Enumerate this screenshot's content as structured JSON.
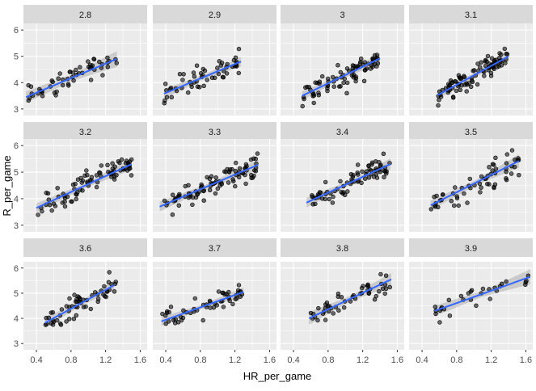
{
  "chart_data": {
    "type": "scatter",
    "subtype": "faceted scatter with linear fit and confidence band",
    "xlabel": "HR_per_game",
    "ylabel": "R_per_game",
    "x_ticks": [
      0.4,
      0.8,
      1.2,
      1.6
    ],
    "x_tick_labels": [
      "0.4",
      "0.8",
      "1.2",
      "1.6"
    ],
    "y_ticks": [
      3,
      4,
      5,
      6
    ],
    "y_tick_labels": [
      "3",
      "4",
      "5",
      "6"
    ],
    "xlim": [
      0.25,
      1.68
    ],
    "ylim": [
      2.75,
      6.25
    ],
    "colors": {
      "panel": "#EBEBEB",
      "strip": "#D9D9D9",
      "fit_line": "#3366FF",
      "band": "#999999",
      "points": "#000000"
    },
    "facets": [
      {
        "label": "2.8",
        "fit": {
          "x0": 0.28,
          "y0": 3.45,
          "x1": 1.33,
          "y1": 4.9,
          "se0": 0.22,
          "se1": 0.3
        },
        "n": 55,
        "xmin": 0.3,
        "xmax": 1.33
      },
      {
        "label": "2.9",
        "fit": {
          "x0": 0.38,
          "y0": 3.58,
          "x1": 1.27,
          "y1": 4.8,
          "se0": 0.18,
          "se1": 0.18
        },
        "n": 55,
        "xmin": 0.38,
        "xmax": 1.27
      },
      {
        "label": "3",
        "fit": {
          "x0": 0.5,
          "y0": 3.5,
          "x1": 1.4,
          "y1": 4.92,
          "se0": 0.17,
          "se1": 0.2
        },
        "n": 80,
        "xmin": 0.5,
        "xmax": 1.4
      },
      {
        "label": "3.1",
        "fit": {
          "x0": 0.58,
          "y0": 3.52,
          "x1": 1.4,
          "y1": 5.0,
          "se0": 0.16,
          "se1": 0.2
        },
        "n": 95,
        "xmin": 0.58,
        "xmax": 1.4
      },
      {
        "label": "3.2",
        "fit": {
          "x0": 0.4,
          "y0": 3.65,
          "x1": 1.5,
          "y1": 5.3,
          "se0": 0.17,
          "se1": 0.22
        },
        "n": 85,
        "xmin": 0.4,
        "xmax": 1.5
      },
      {
        "label": "3.3",
        "fit": {
          "x0": 0.33,
          "y0": 3.7,
          "x1": 1.47,
          "y1": 5.28,
          "se0": 0.18,
          "se1": 0.2
        },
        "n": 90,
        "xmin": 0.33,
        "xmax": 1.47
      },
      {
        "label": "3.4",
        "fit": {
          "x0": 0.55,
          "y0": 3.85,
          "x1": 1.52,
          "y1": 5.3,
          "se0": 0.18,
          "se1": 0.22
        },
        "n": 75,
        "xmin": 0.55,
        "xmax": 1.52
      },
      {
        "label": "3.5",
        "fit": {
          "x0": 0.5,
          "y0": 3.75,
          "x1": 1.52,
          "y1": 5.42,
          "se0": 0.18,
          "se1": 0.25
        },
        "n": 60,
        "xmin": 0.5,
        "xmax": 1.52
      },
      {
        "label": "3.6",
        "fit": {
          "x0": 0.5,
          "y0": 3.82,
          "x1": 1.3,
          "y1": 5.32,
          "se0": 0.2,
          "se1": 0.2
        },
        "n": 60,
        "xmin": 0.5,
        "xmax": 1.32
      },
      {
        "label": "3.7",
        "fit": {
          "x0": 0.35,
          "y0": 3.88,
          "x1": 1.3,
          "y1": 5.05,
          "se0": 0.18,
          "se1": 0.18
        },
        "n": 55,
        "xmin": 0.35,
        "xmax": 1.3
      },
      {
        "label": "3.8",
        "fit": {
          "x0": 0.58,
          "y0": 4.0,
          "x1": 1.53,
          "y1": 5.55,
          "se0": 0.25,
          "se1": 0.25
        },
        "n": 50,
        "xmin": 0.58,
        "xmax": 1.53
      },
      {
        "label": "3.9",
        "fit": {
          "x0": 0.55,
          "y0": 4.3,
          "x1": 1.65,
          "y1": 5.65,
          "se0": 0.2,
          "se1": 0.3
        },
        "n": 30,
        "xmin": 0.55,
        "xmax": 1.63
      }
    ]
  }
}
